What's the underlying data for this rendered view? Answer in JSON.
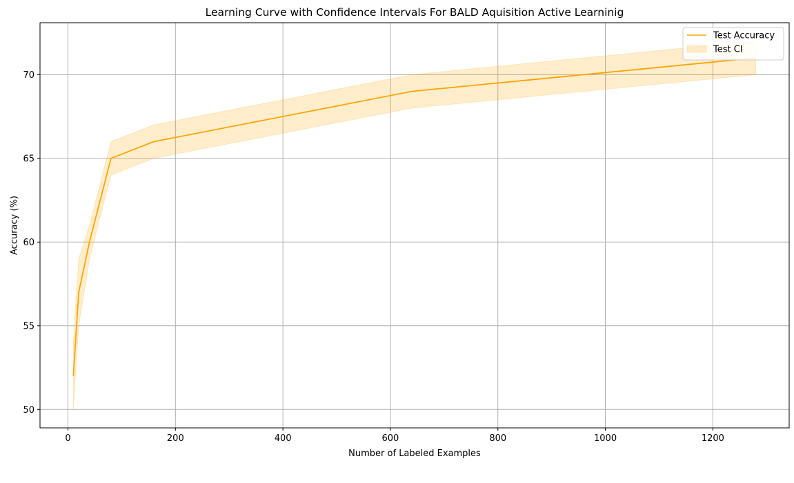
{
  "chart_data": {
    "type": "line",
    "title": "Learning Curve with Confidence Intervals For BALD Aquisition Active Learninig",
    "xlabel": "Number of Labeled Examples",
    "ylabel": "Accuracy (%)",
    "xlim": [
      -52,
      1342
    ],
    "ylim": [
      48.9,
      73.1
    ],
    "xticks": [
      0,
      200,
      400,
      600,
      800,
      1000,
      1200
    ],
    "yticks": [
      50,
      55,
      60,
      65,
      70
    ],
    "grid": true,
    "legend_position": "upper right",
    "x": [
      10,
      20,
      40,
      80,
      160,
      320,
      640,
      1280
    ],
    "series": [
      {
        "name": "Test Accuracy",
        "kind": "line",
        "color": "#ffa500",
        "values": [
          52,
          57,
          60,
          65,
          66,
          67,
          69,
          71
        ]
      },
      {
        "name": "Test CI",
        "kind": "band",
        "color": "#ffa500",
        "opacity": 0.2,
        "lower": [
          50,
          55,
          59,
          64,
          65,
          66,
          68,
          70
        ],
        "upper": [
          54,
          59,
          61,
          66,
          67,
          68,
          70,
          72
        ]
      }
    ]
  }
}
